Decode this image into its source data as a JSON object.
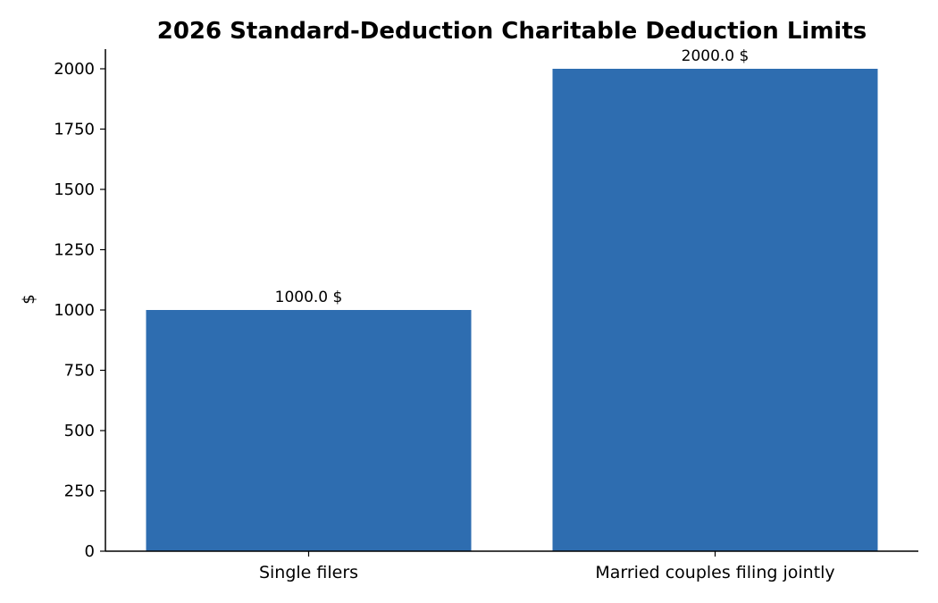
{
  "chart_data": {
    "type": "bar",
    "title": "2026 Standard-Deduction Charitable Deduction Limits",
    "xlabel": "",
    "ylabel": "$",
    "categories": [
      "Single filers",
      "Married couples filing jointly"
    ],
    "values": [
      1000.0,
      2000.0
    ],
    "data_labels": [
      "1000.0 $",
      "2000.0 $"
    ],
    "yticks": [
      0,
      250,
      500,
      750,
      1000,
      1250,
      1500,
      1750,
      2000
    ],
    "ylim": [
      0,
      2100
    ],
    "grid": false,
    "bar_color": "#2e6db0"
  }
}
